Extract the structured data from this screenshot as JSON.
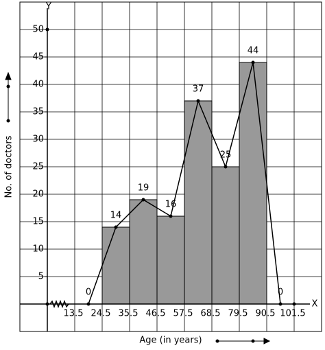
{
  "chart_data": {
    "type": "histogram",
    "x_label": "Age (in years)",
    "y_label": "No. of doctors",
    "x_axis_name": "X",
    "y_axis_name": "Y",
    "bins": [
      24.5,
      35.5,
      46.5,
      57.5,
      68.5,
      79.5,
      90.5
    ],
    "values": [
      14,
      19,
      16,
      37,
      25,
      44
    ],
    "color": "#999999",
    "polygon": {
      "x": [
        19,
        30,
        41,
        52,
        63,
        74,
        85,
        96
      ],
      "values": [
        0,
        14,
        19,
        16,
        37,
        25,
        44,
        0
      ]
    },
    "xlim": [
      -8.5,
      112.5
    ],
    "xticks": [
      13.5,
      24.5,
      35.5,
      46.5,
      57.5,
      68.5,
      79.5,
      90.5,
      101.5
    ],
    "ylim": [
      -5,
      55
    ],
    "yticks": [
      5,
      10,
      15,
      20,
      25,
      30,
      35,
      40,
      45,
      50
    ],
    "grid": true
  }
}
